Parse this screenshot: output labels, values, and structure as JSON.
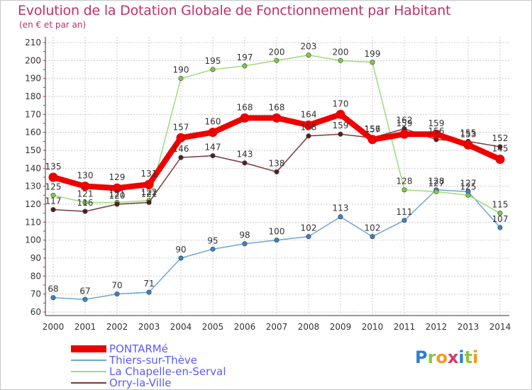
{
  "title": "Evolution de la Dotation Globale de Fonctionnement par Habitant",
  "subtitle": "(en € et par an)",
  "logo": {
    "text": "Proxiti",
    "letters": [
      {
        "ch": "P",
        "color": "#2f7fd0"
      },
      {
        "ch": "r",
        "color": "#8cc63f"
      },
      {
        "ch": "o",
        "color": "#f39a1e"
      },
      {
        "ch": "x",
        "color": "#d33a6a"
      },
      {
        "ch": "i",
        "color": "#2f7fd0"
      },
      {
        "ch": "t",
        "color": "#8cc63f"
      },
      {
        "ch": "i",
        "color": "#f39a1e"
      }
    ]
  },
  "chart_data": {
    "type": "line",
    "title": "Evolution de la Dotation Globale de Fonctionnement par Habitant",
    "subtitle": "(en € et par an)",
    "xlabel": "",
    "ylabel": "",
    "ylim": [
      60,
      210
    ],
    "ytick_step": 10,
    "grid": true,
    "legend_position": "bottom-left",
    "x": [
      "2000",
      "2001",
      "2002",
      "2003",
      "2004",
      "2005",
      "2006",
      "2007",
      "2008",
      "2009",
      "2010",
      "2011",
      "2012",
      "2013",
      "2014"
    ],
    "series": [
      {
        "name": "PONTARMé",
        "color": "#ee0000",
        "point_color": "#ee0000",
        "line_width": "thick",
        "values": [
          135,
          130,
          129,
          131,
          157,
          160,
          168,
          168,
          164,
          170,
          156,
          159,
          159,
          153,
          145
        ]
      },
      {
        "name": "Thiers-sur-Thève",
        "color": "#6fa6d6",
        "point_color": "#3a85c5",
        "line_width": "thin",
        "values": [
          68,
          67,
          70,
          71,
          90,
          95,
          98,
          100,
          102,
          113,
          102,
          111,
          128,
          127,
          107
        ]
      },
      {
        "name": "La Chapelle-en-Serval",
        "color": "#9ddc7a",
        "point_color": "#7ccf3f",
        "line_width": "thin",
        "values": [
          125,
          121,
          121,
          122,
          190,
          195,
          197,
          200,
          203,
          200,
          199,
          128,
          127,
          125,
          115
        ]
      },
      {
        "name": "Orry-la-Ville",
        "color": "#7a3a3a",
        "point_color": "#5a1e1e",
        "line_width": "thin",
        "values": [
          117,
          116,
          120,
          121,
          146,
          147,
          143,
          138,
          158,
          159,
          157,
          162,
          156,
          155,
          152
        ]
      }
    ]
  }
}
